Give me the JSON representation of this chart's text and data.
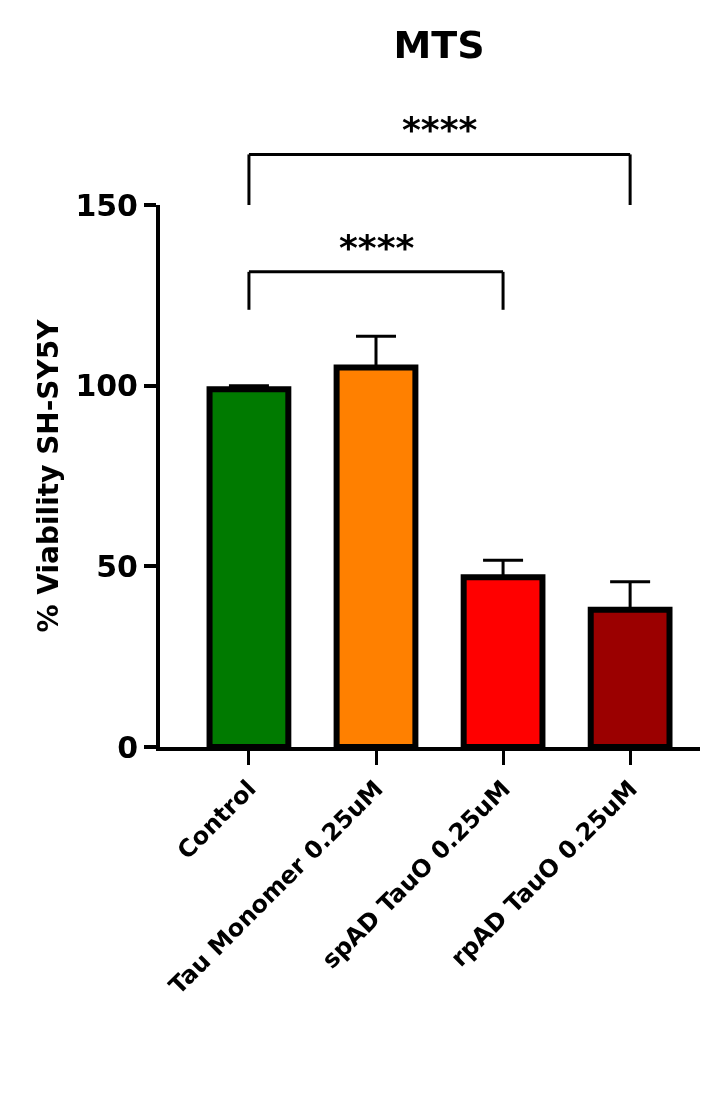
{
  "chart_data": {
    "type": "bar",
    "title": "MTS",
    "ylabel": "% Viability SH-SY5Y",
    "categories": [
      "Control",
      "Tau Monomer 0.25uM",
      "spAD TauO 0.25uM",
      "rpAD TauO 0.25uM"
    ],
    "values": [
      99,
      105,
      47,
      38
    ],
    "colors": [
      "#007a00",
      "#ff8000",
      "#ff0000",
      "#9b0000"
    ],
    "errors": [
      [
        99,
        100
      ],
      [
        105,
        113.7
      ],
      [
        47,
        51.7
      ],
      [
        38,
        45.7
      ]
    ],
    "ylim": [
      0,
      150
    ],
    "yticks": [
      0,
      50,
      100,
      150
    ],
    "legend": false,
    "annotations": [
      "****",
      "****"
    ]
  }
}
